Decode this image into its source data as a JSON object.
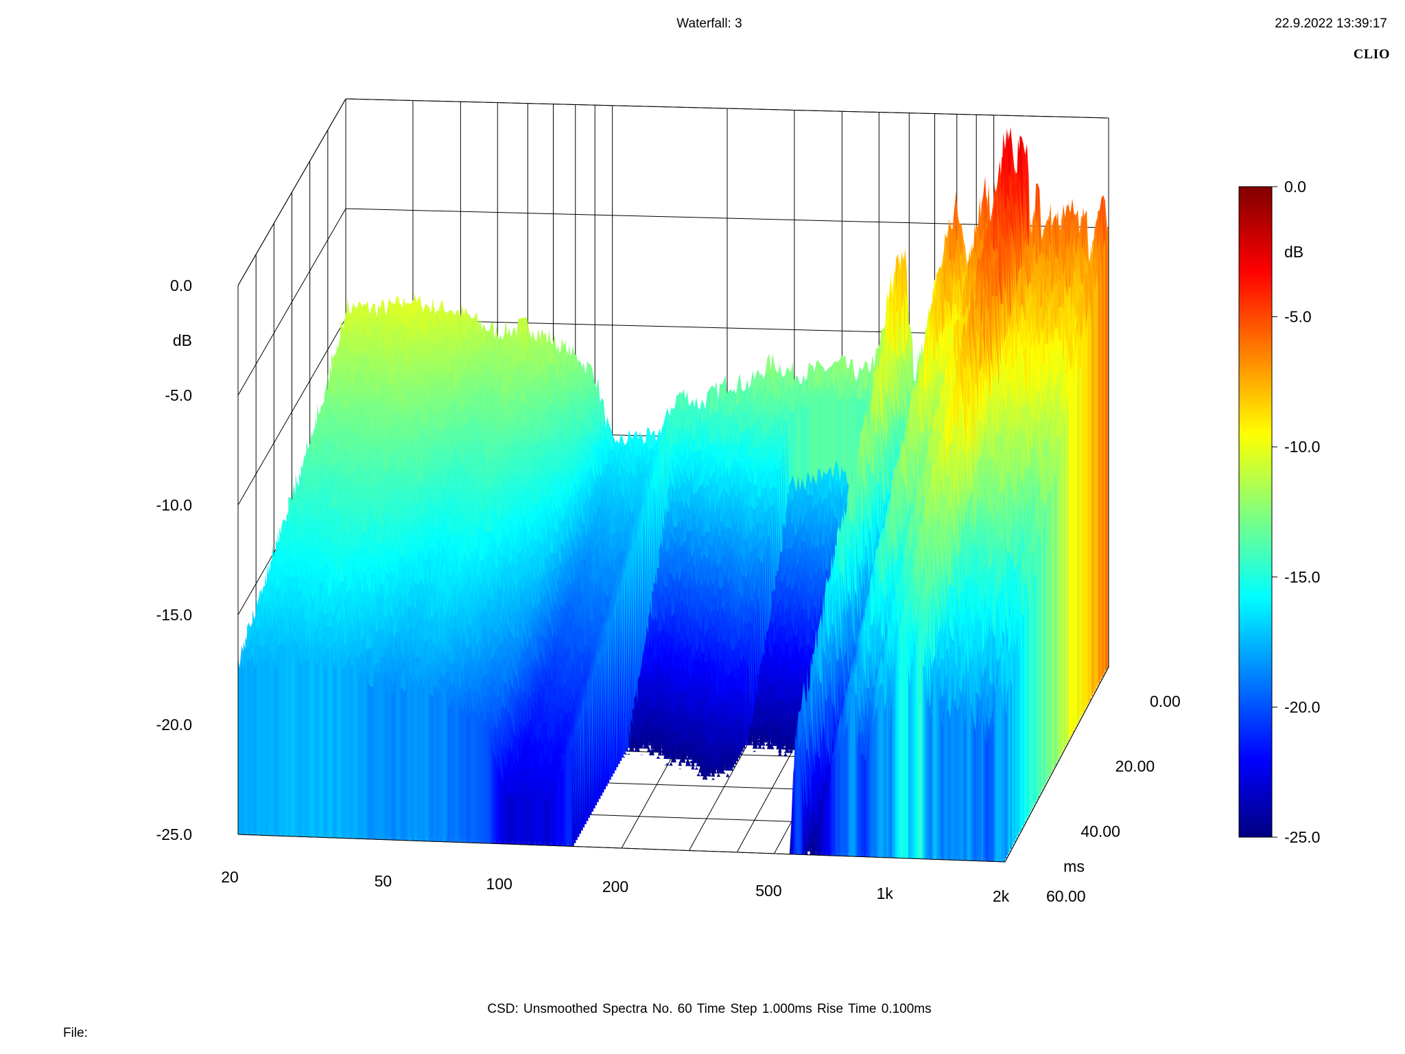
{
  "header": {
    "title": "Waterfall: 3",
    "timestamp": "22.9.2022 13:39:17",
    "brand": "CLIO"
  },
  "footer": {
    "settings": "CSD:   Unsmoothed   Spectra No. 60   Time Step 1.000ms   Rise Time 0.100ms",
    "file_label": "File:"
  },
  "chart_data": {
    "type": "waterfall",
    "title": "Waterfall: 3",
    "x_axis": {
      "scale": "log",
      "range": [
        20,
        2000
      ],
      "tick_labels": [
        "20",
        "50",
        "100",
        "200",
        "500",
        "1k",
        "2k"
      ],
      "tick_values": [
        20,
        50,
        100,
        200,
        500,
        1000,
        2000
      ]
    },
    "y_axis": {
      "unit": "dB",
      "range": [
        -25,
        0
      ],
      "tick_labels": [
        "0.0",
        "dB",
        "-5.0",
        "-10.0",
        "-15.0",
        "-20.0",
        "-25.0"
      ]
    },
    "z_axis": {
      "unit": "ms",
      "range": [
        0,
        60
      ],
      "tick_labels": [
        "0.00",
        "20.00",
        "40.00",
        "ms",
        "60.00"
      ]
    },
    "colorbar": {
      "unit": "dB",
      "range": [
        -25,
        0
      ],
      "tick_labels": [
        "0.0",
        "dB",
        "-5.0",
        "-10.0",
        "-15.0",
        "-20.0",
        "-25.0"
      ],
      "colormap": [
        "#000080",
        "#0000ff",
        "#00ffff",
        "#ffff00",
        "#ff0000",
        "#800000"
      ]
    },
    "front_spectrum_t0": {
      "freq_hz": [
        20,
        25,
        30,
        40,
        50,
        60,
        70,
        80,
        90,
        100,
        115,
        130,
        150,
        170,
        200,
        230,
        260,
        300,
        350,
        400,
        450,
        500,
        540,
        580,
        620,
        660,
        700,
        750,
        800,
        850,
        900,
        950,
        1000,
        1050,
        1100,
        1150,
        1200,
        1250,
        1300,
        1350,
        1400,
        1450,
        1500,
        1560,
        1620,
        1680,
        1740,
        1800,
        1870,
        1940,
        2000
      ],
      "level_db": [
        -9.5,
        -9.5,
        -9.2,
        -9.6,
        -10.5,
        -10.1,
        -10.8,
        -11.5,
        -12.2,
        -15.5,
        -15.0,
        -15.2,
        -13.0,
        -13.5,
        -12.5,
        -12.5,
        -11.5,
        -12.0,
        -11.8,
        -11.5,
        -12.0,
        -11.0,
        -8.0,
        -6.2,
        -12.5,
        -10.5,
        -8.5,
        -6.0,
        -4.5,
        -7.0,
        -5.5,
        -3.5,
        -5.0,
        -2.0,
        -1.0,
        -4.0,
        0.0,
        -5.5,
        -3.8,
        -5.5,
        -4.5,
        -4.5,
        -4.0,
        -4.8,
        -4.0,
        -6.0,
        -4.5,
        -6.5,
        -5.0,
        -3.5,
        -4.5
      ]
    },
    "decay_envelope": {
      "time_ms": [
        0,
        10,
        20,
        30,
        40,
        50,
        60
      ],
      "note": ""
    }
  }
}
